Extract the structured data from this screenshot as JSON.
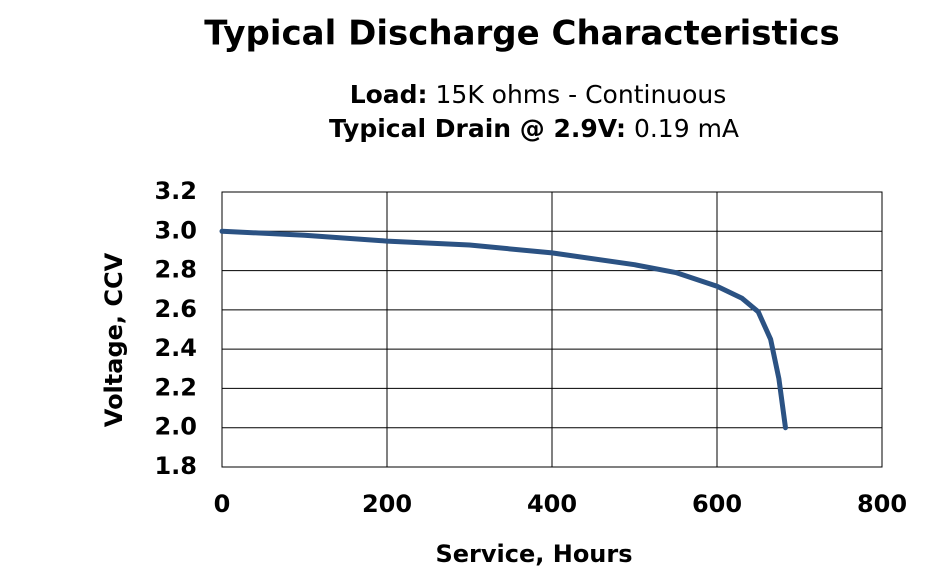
{
  "chart_data": {
    "type": "line",
    "title": "Typical Discharge Characteristics",
    "load_label": "Load:",
    "load_value": "15K ohms - Continuous",
    "drain_label": "Typical Drain @ 2.9V:",
    "drain_value": "0.19 mA",
    "x_label": "Service, Hours",
    "y_label": "Voltage, CCV",
    "x": [
      0,
      100,
      200,
      300,
      400,
      500,
      550,
      600,
      630,
      650,
      665,
      675,
      683
    ],
    "series": [
      {
        "color": "#2b5283",
        "values": [
          3.0,
          2.98,
          2.95,
          2.93,
          2.89,
          2.83,
          2.79,
          2.72,
          2.66,
          2.59,
          2.45,
          2.25,
          2.0
        ]
      }
    ],
    "xlim": [
      0,
      800
    ],
    "xticks": [
      0,
      200,
      400,
      600,
      800
    ],
    "ylim": [
      1.8,
      3.2
    ],
    "yticks": [
      1.8,
      {
        "value": 2,
        "label": "2.0"
      },
      2.2,
      2.4,
      2.6,
      2.8,
      {
        "value": 3,
        "label": "3.0"
      },
      3.2
    ],
    "grid": true
  }
}
